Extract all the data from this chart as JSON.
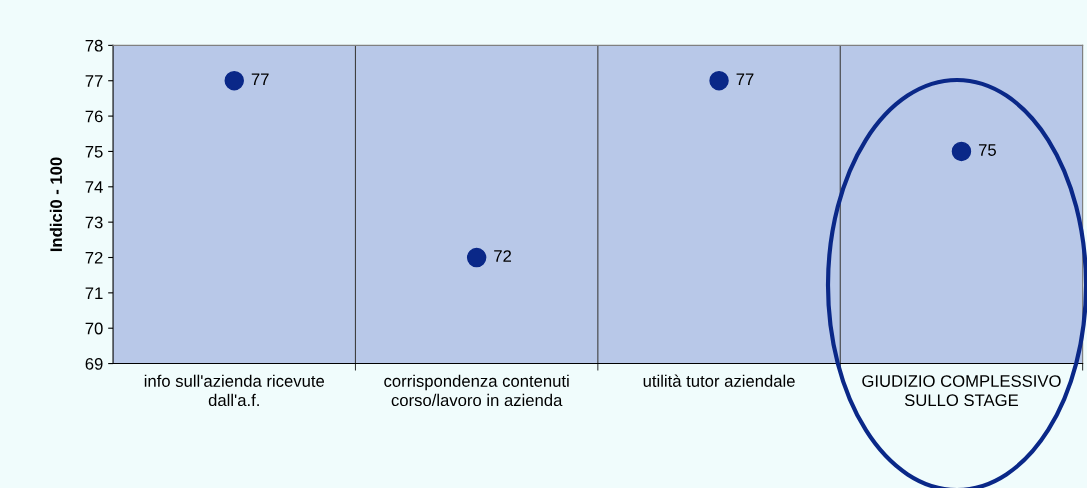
{
  "chart_data": {
    "type": "scatter",
    "ylabel": "Indici0 - 100",
    "categories": [
      "info sull'azienda ricevute dall'a.f.",
      "corrispondenza contenuti corso/lavoro in azienda",
      "utilità tutor aziendale",
      "GIUDIZIO COMPLESSIVO SULLO STAGE"
    ],
    "series": [
      {
        "color": "#0a2888",
        "values": [
          77,
          72,
          77,
          75
        ]
      }
    ],
    "ylim": [
      69,
      78
    ],
    "yticks": [
      69,
      70,
      71,
      72,
      73,
      74,
      75,
      76,
      77,
      78
    ],
    "data_labels": true,
    "marker": "circle",
    "grid": "x",
    "legend": false
  }
}
